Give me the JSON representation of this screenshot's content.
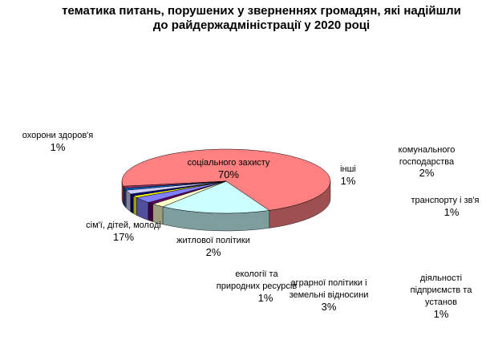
{
  "chart_data": {
    "type": "pie",
    "title_lines": [
      "тематика питань, порушених у зверненнях громадян, які надійшли",
      "до райдержадміністрації  у 2020 році"
    ],
    "slices": [
      {
        "label": "соціального захисту",
        "percent_label": "70%",
        "value": 70,
        "color": "#ff8080"
      },
      {
        "label": "сім'ї, дітей, молоді",
        "percent_label": "17%",
        "value": 17,
        "color": "#ccffff"
      },
      {
        "label": "житлової політики",
        "percent_label": "2%",
        "value": 2,
        "color": "#ffffcc"
      },
      {
        "label": "екології та природних ресурсів",
        "percent_label": "1%",
        "value": 1,
        "color": "#660066"
      },
      {
        "label": "аграрної політики і земельні відносини",
        "percent_label": "3%",
        "value": 3,
        "color": "#8080ff"
      },
      {
        "label": "діяльності підприємств та установ",
        "percent_label": "1%",
        "value": 1,
        "color": "#ffff00"
      },
      {
        "label": "транспорту і зв'я",
        "percent_label": "1%",
        "value": 1,
        "color": "#000080"
      },
      {
        "label": "комунального господарства",
        "percent_label": "2%",
        "value": 2,
        "color": "#ccccff"
      },
      {
        "label": "інші",
        "percent_label": "1%",
        "value": 1,
        "color": "#0066cc"
      },
      {
        "label": "охорони здоров'я",
        "percent_label": "1%",
        "value": 1,
        "color": "#993366"
      }
    ]
  }
}
